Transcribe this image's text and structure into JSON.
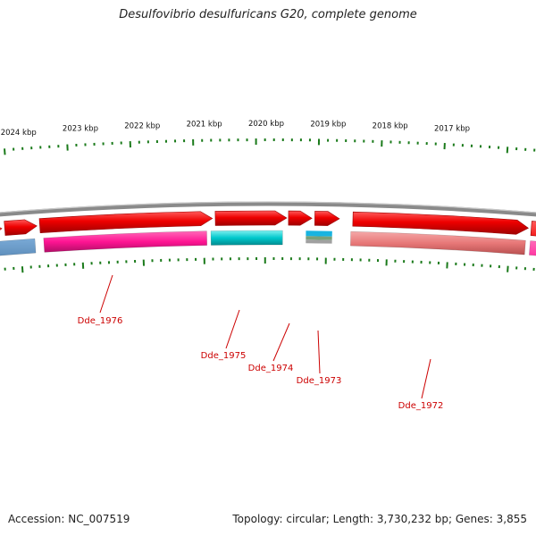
{
  "title": "Desulfovibrio desulfuricans G20, complete genome",
  "footer": {
    "accession": "Accession: NC_007519",
    "summary": "Topology: circular; Length: 3,730,232 bp; Genes: 3,855"
  },
  "scale_labels": [
    "2024 kbp",
    "2023 kbp",
    "2022 kbp",
    "2021 kbp",
    "2020 kbp",
    "2019 kbp",
    "2018 kbp",
    "2017 kbp"
  ],
  "gene_labels": [
    "Dde_1976",
    "Dde_1975",
    "Dde_1974",
    "Dde_1973",
    "Dde_1972"
  ],
  "colors": {
    "backbone": "#8a8a8a",
    "forward_cds": "#ee0000",
    "reverse_cds_magenta": "#ff1493",
    "reverse_cds_cyan": "#00c8cc",
    "reverse_cds_salmon": "#e87878",
    "reverse_cds_blue": "#3a78b0",
    "small_feature_cyan": "#18b4e0",
    "small_feature_green": "#7aa07a",
    "small_feature_gray": "#a0a0a0",
    "tick": "#1a7a1a",
    "gene_label": "#cc0000"
  }
}
